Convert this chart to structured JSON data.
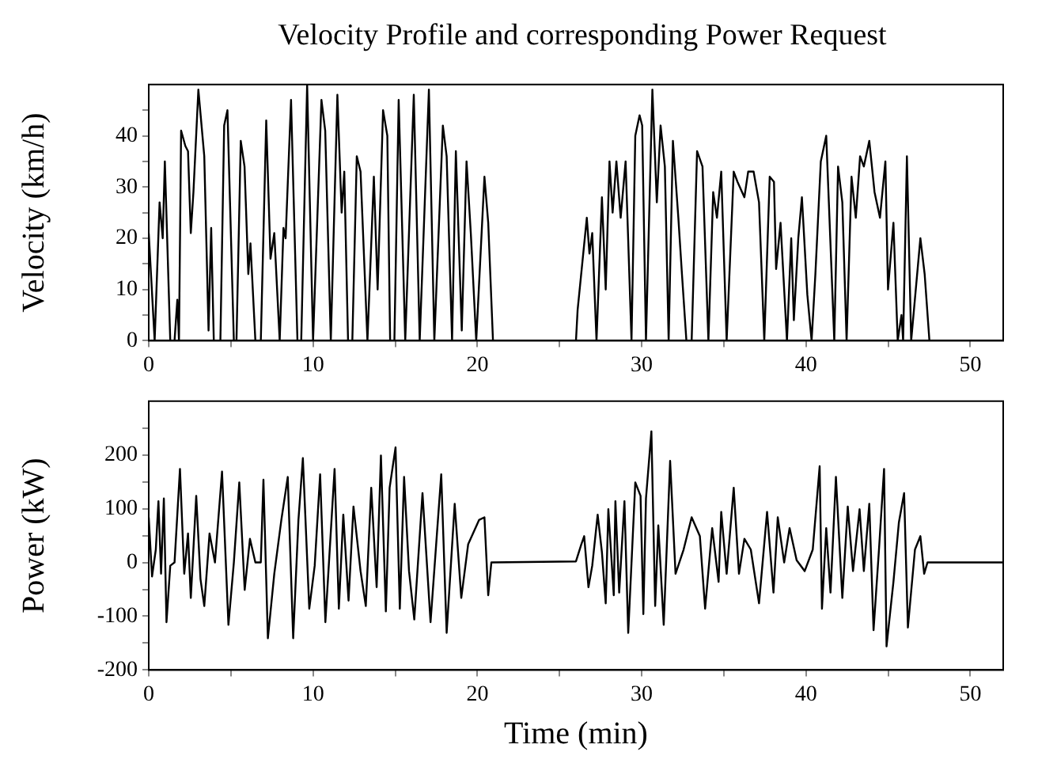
{
  "chart_data": [
    {
      "type": "line",
      "title": "Velocity Profile and corresponding Power Request",
      "ylabel": "Velocity (km/h)",
      "xlim": [
        0,
        52
      ],
      "xticks": [
        0,
        {
          "value": 5,
          "label": null
        },
        10,
        {
          "value": 15,
          "label": null
        },
        20,
        {
          "value": 25,
          "label": null
        },
        30,
        {
          "value": 35,
          "label": null
        },
        40,
        {
          "value": 45,
          "label": null
        },
        50
      ],
      "ylim": [
        0,
        50
      ],
      "yticks": [
        0,
        {
          "value": 5,
          "label": null
        },
        10,
        {
          "value": 15,
          "label": null
        },
        20,
        {
          "value": 25,
          "label": null
        },
        30,
        {
          "value": 35,
          "label": null
        },
        40,
        {
          "value": 45,
          "label": null
        }
      ],
      "series": [
        {
          "color": "#000000",
          "x": [
            0,
            0.36,
            0.66,
            0.85,
            0.98,
            1.31,
            1.57,
            1.74,
            1.84,
            1.97,
            2.23,
            2.39,
            2.56,
            2.72,
            3.02,
            3.38,
            3.64,
            3.8,
            3.96,
            4.36,
            4.59,
            4.79,
            5.18,
            5.34,
            5.6,
            5.83,
            6.06,
            6.19,
            6.49,
            6.82,
            7.15,
            7.41,
            7.64,
            7.97,
            8.2,
            8.33,
            8.66,
            9.05,
            9.28,
            9.64,
            10.0,
            10.51,
            10.74,
            11.08,
            11.48,
            11.74,
            11.9,
            12.13,
            12.39,
            12.66,
            12.89,
            13.31,
            13.7,
            13.93,
            14.26,
            14.52,
            14.69,
            14.95,
            15.21,
            15.61,
            16.13,
            16.49,
            17.05,
            17.38,
            17.9,
            18.13,
            18.46,
            18.69,
            19.05,
            19.34,
            19.6,
            19.93,
            20.43,
            20.66,
            20.95,
            26.0,
            26.1,
            26.66,
            26.82,
            26.99,
            27.25,
            27.58,
            27.81,
            28.04,
            28.23,
            28.46,
            28.72,
            29.02,
            29.38,
            29.61,
            29.87,
            30.03,
            30.26,
            30.65,
            30.92,
            31.15,
            31.41,
            31.64,
            31.9,
            32.23,
            32.45,
            32.72,
            33.04,
            33.37,
            33.7,
            34.06,
            34.35,
            34.58,
            34.84,
            35.17,
            35.6,
            35.83,
            36.25,
            36.48,
            36.81,
            37.14,
            37.46,
            37.79,
            38.05,
            38.18,
            38.45,
            38.84,
            39.1,
            39.26,
            39.53,
            39.75,
            40.08,
            40.34,
            40.57,
            40.9,
            41.23,
            41.72,
            41.95,
            42.21,
            42.47,
            42.77,
            43.03,
            43.29,
            43.52,
            43.85,
            44.17,
            44.5,
            44.83,
            44.99,
            45.32,
            45.58,
            45.81,
            45.91,
            46.14,
            46.4,
            46.96,
            47.22,
            47.51,
            52
          ],
          "values": [
            21,
            0,
            27,
            20,
            35,
            0,
            0,
            8,
            0,
            41,
            38,
            37,
            21,
            29,
            49,
            36,
            2,
            22,
            0,
            0,
            42,
            45,
            0,
            0,
            39,
            34,
            13,
            19,
            0,
            0,
            43,
            16,
            21,
            0,
            22,
            20,
            47,
            0,
            0,
            50,
            0,
            47,
            41,
            0,
            48,
            25,
            33,
            0,
            0,
            36,
            33,
            0,
            32,
            10,
            45,
            40,
            0,
            0,
            47,
            0,
            48,
            0,
            49,
            0,
            42,
            36,
            0,
            37,
            2,
            35,
            21,
            0,
            32,
            23,
            0,
            0,
            6,
            24,
            17,
            21,
            0,
            28,
            10,
            35,
            25,
            35,
            24,
            35,
            0,
            40,
            44,
            42,
            0,
            49,
            27,
            42,
            34,
            0,
            39,
            24,
            13,
            0,
            0,
            37,
            34,
            0,
            29,
            24,
            33,
            0,
            33,
            31,
            28,
            33,
            33,
            27,
            0,
            32,
            31,
            14,
            23,
            0,
            20,
            4,
            20,
            28,
            9,
            0,
            13,
            35,
            40,
            0,
            34,
            27,
            0,
            32,
            24,
            36,
            34,
            39,
            29,
            24,
            35,
            10,
            23,
            0,
            5,
            0,
            36,
            0,
            20,
            13,
            0,
            0
          ]
        }
      ]
    },
    {
      "type": "line",
      "xlabel": "Time (min)",
      "ylabel": "Power (kW)",
      "xlim": [
        0,
        52
      ],
      "xticks": [
        0,
        {
          "value": 5,
          "label": null
        },
        10,
        {
          "value": 15,
          "label": null
        },
        20,
        {
          "value": 25,
          "label": null
        },
        30,
        {
          "value": 35,
          "label": null
        },
        40,
        {
          "value": 45,
          "label": null
        },
        50
      ],
      "ylim": [
        -200,
        300
      ],
      "yticks": [
        -200,
        {
          "value": -150,
          "label": null
        },
        -100,
        {
          "value": -50,
          "label": null
        },
        0,
        {
          "value": 50,
          "label": null
        },
        100,
        {
          "value": 150,
          "label": null
        },
        200,
        {
          "value": 250,
          "label": null
        }
      ],
      "series": [
        {
          "color": "#000000",
          "x": [
            0,
            0.2,
            0.43,
            0.59,
            0.75,
            0.92,
            1.08,
            1.31,
            1.57,
            1.9,
            2.16,
            2.39,
            2.56,
            2.89,
            3.15,
            3.38,
            3.7,
            4.03,
            4.46,
            4.85,
            5.18,
            5.51,
            5.84,
            6.16,
            6.49,
            6.82,
            6.98,
            7.25,
            7.64,
            8.07,
            8.46,
            8.79,
            9.11,
            9.38,
            9.77,
            10.1,
            10.43,
            10.75,
            11.31,
            11.57,
            11.84,
            12.16,
            12.46,
            12.89,
            13.21,
            13.54,
            13.87,
            14.13,
            14.43,
            14.66,
            15.02,
            15.28,
            15.54,
            15.84,
            16.16,
            16.66,
            17.15,
            17.8,
            18.13,
            18.62,
            19.02,
            19.44,
            20.1,
            20.43,
            20.66,
            20.85,
            26.0,
            26.33,
            26.5,
            26.76,
            26.99,
            27.32,
            27.58,
            27.81,
            27.97,
            28.3,
            28.4,
            28.63,
            28.95,
            29.18,
            29.61,
            29.93,
            30.1,
            30.26,
            30.59,
            30.82,
            31.01,
            31.34,
            31.73,
            32.06,
            32.55,
            33.04,
            33.54,
            33.86,
            34.29,
            34.68,
            34.84,
            35.17,
            35.6,
            35.92,
            36.25,
            36.64,
            37.14,
            37.63,
            38.02,
            38.28,
            38.67,
            39.0,
            39.43,
            39.92,
            40.41,
            40.83,
            40.97,
            41.23,
            41.49,
            41.82,
            42.21,
            42.54,
            42.86,
            43.26,
            43.52,
            43.85,
            44.11,
            44.44,
            44.75,
            44.9,
            45.32,
            45.65,
            45.97,
            46.2,
            46.63,
            46.96,
            47.19,
            47.39,
            52
          ],
          "values": [
            84,
            -26,
            24,
            114,
            -21,
            119,
            -111,
            -6,
            0,
            174,
            -21,
            54,
            -66,
            124,
            -31,
            -81,
            54,
            0,
            169,
            -116,
            0,
            149,
            -51,
            44,
            0,
            0,
            154,
            -141,
            -21,
            79,
            159,
            -141,
            79,
            194,
            -86,
            -6,
            164,
            -111,
            174,
            -86,
            89,
            -71,
            104,
            -16,
            -81,
            139,
            -46,
            199,
            -91,
            139,
            214,
            -86,
            159,
            -16,
            -106,
            129,
            -111,
            164,
            -131,
            109,
            -66,
            34,
            79,
            84,
            -61,
            0,
            2,
            34,
            49,
            -46,
            -6,
            89,
            19,
            -76,
            99,
            -61,
            114,
            -56,
            114,
            -131,
            149,
            124,
            -96,
            119,
            244,
            -81,
            69,
            -116,
            189,
            -21,
            24,
            84,
            49,
            -86,
            64,
            -36,
            94,
            -21,
            139,
            -21,
            44,
            24,
            -76,
            94,
            -56,
            84,
            0,
            64,
            4,
            -16,
            24,
            179,
            -86,
            64,
            -56,
            159,
            -66,
            104,
            -16,
            99,
            -16,
            109,
            -126,
            24,
            174,
            -156,
            -36,
            74,
            129,
            -121,
            24,
            49,
            -21,
            0,
            0
          ]
        }
      ]
    }
  ]
}
